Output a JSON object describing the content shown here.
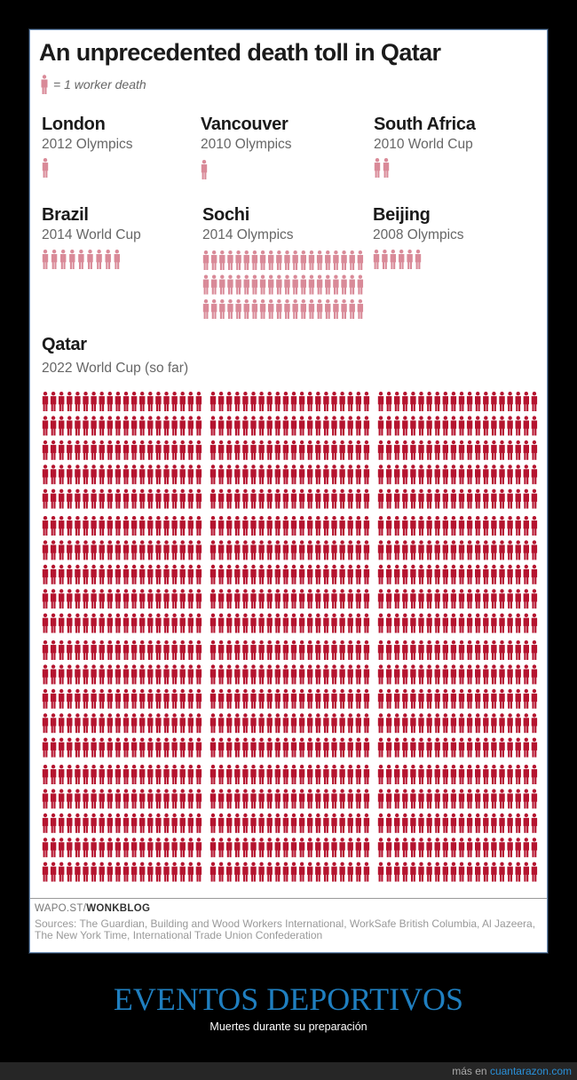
{
  "chart_data": {
    "type": "pictogram",
    "title": "An unprecedented death toll in Qatar",
    "legend": "= 1 worker death",
    "unit_per_icon": 1,
    "colors": {
      "previous_events": "#d98a98",
      "qatar": "#b5142f"
    },
    "events": [
      {
        "name": "London",
        "event": "2012 Olympics",
        "deaths": 1
      },
      {
        "name": "Vancouver",
        "event": "2010 Olympics",
        "deaths": 1
      },
      {
        "name": "South Africa",
        "event": "2010 World Cup",
        "deaths": 2
      },
      {
        "name": "Brazil",
        "event": "2014 World Cup",
        "deaths": 9
      },
      {
        "name": "Sochi",
        "event": "2014 Olympics",
        "deaths": 60
      },
      {
        "name": "Beijing",
        "event": "2008 Olympics",
        "deaths": 6
      },
      {
        "name": "Qatar",
        "event": "2022 World Cup (so far)",
        "deaths": 1200
      }
    ]
  },
  "credit": {
    "prefix": "WAPO.ST/",
    "brand": "WONKBLOG"
  },
  "sources": "Sources: The Guardian, Building and Wood Workers International, WorkSafe British Columbia, Al Jazeera, The New York Time, International Trade Union Confederation",
  "caption": {
    "title": "EVENTOS DEPORTIVOS",
    "subtitle": "Muertes durante su preparación"
  },
  "footer": {
    "prefix": "más en",
    "site": "cuantarazon.com"
  }
}
